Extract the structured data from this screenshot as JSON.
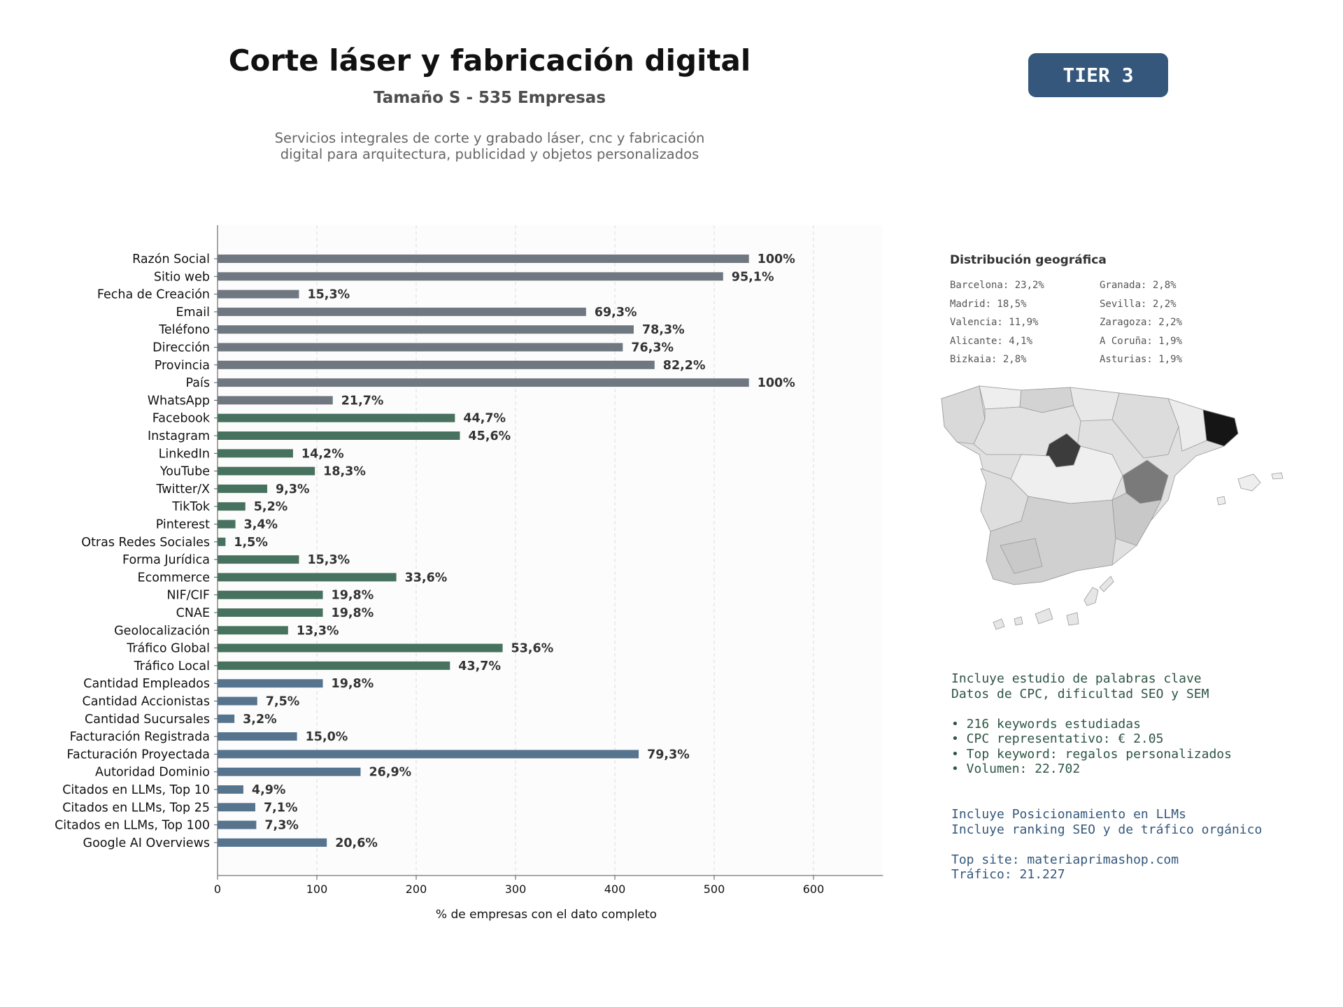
{
  "header": {
    "title": "Corte láser y fabricación digital",
    "subtitle": "Tamaño S - 535 Empresas",
    "description_line1": "Servicios integrales de corte y grabado láser, cnc y fabricación",
    "description_line2": "digital para arquitectura, publicidad y objetos personalizados",
    "tier_label": "TIER 3"
  },
  "chart_data": {
    "type": "bar",
    "orientation": "horizontal",
    "title": "",
    "xlabel": "% de empresas con el dato completo",
    "ylabel": "",
    "xlim": [
      0,
      670
    ],
    "xticks": [
      0,
      100,
      200,
      300,
      400,
      500,
      600
    ],
    "grid": true,
    "categories": [
      "Razón Social",
      "Sitio web",
      "Fecha de Creación",
      "Email",
      "Teléfono",
      "Dirección",
      "Provincia",
      "País",
      "WhatsApp",
      "Facebook",
      "Instagram",
      "LinkedIn",
      "YouTube",
      "Twitter/X",
      "TikTok",
      "Pinterest",
      "Otras Redes Sociales",
      "Forma Jurídica",
      "Ecommerce",
      "NIF/CIF",
      "CNAE",
      "Geolocalización",
      "Tráfico Global",
      "Tráfico Local",
      "Cantidad Empleados",
      "Cantidad Accionistas",
      "Cantidad Sucursales",
      "Facturación Registrada",
      "Facturación Proyectada",
      "Autoridad Dominio",
      "Citados en LLMs, Top 10",
      "Citados en LLMs, Top 25",
      "Citados en LLMs, Top 100",
      "Google AI Overviews"
    ],
    "values": [
      535,
      509,
      82,
      371,
      419,
      408,
      440,
      535,
      116,
      239,
      244,
      76,
      98,
      50,
      28,
      18,
      8,
      82,
      180,
      106,
      106,
      71,
      287,
      234,
      106,
      40,
      17,
      80,
      424,
      144,
      26,
      38,
      39,
      110
    ],
    "data_labels": [
      "100%",
      "95,1%",
      "15,3%",
      "69,3%",
      "78,3%",
      "76,3%",
      "82,2%",
      "100%",
      "21,7%",
      "44,7%",
      "45,6%",
      "14,2%",
      "18,3%",
      "9,3%",
      "5,2%",
      "3,4%",
      "1,5%",
      "15,3%",
      "33,6%",
      "19,8%",
      "19,8%",
      "13,3%",
      "53,6%",
      "43,7%",
      "19,8%",
      "7,5%",
      "3,2%",
      "15,0%",
      "79,3%",
      "26,9%",
      "4,9%",
      "7,1%",
      "7,3%",
      "20,6%"
    ],
    "groups": [
      "gray",
      "gray",
      "gray",
      "gray",
      "gray",
      "gray",
      "gray",
      "gray",
      "gray",
      "green",
      "green",
      "green",
      "green",
      "green",
      "green",
      "green",
      "green",
      "green",
      "green",
      "green",
      "green",
      "green",
      "green",
      "green",
      "blue",
      "blue",
      "blue",
      "blue",
      "blue",
      "blue",
      "blue",
      "blue",
      "blue",
      "blue"
    ],
    "colors": {
      "gray": "#6f7780",
      "green": "#47725f",
      "blue": "#57748f"
    }
  },
  "geo": {
    "title": "Distribución geográfica",
    "col1": [
      "Barcelona: 23,2%",
      "Madrid: 18,5%",
      "Valencia: 11,9%",
      "Alicante: 4,1%",
      "Bizkaia: 2,8%"
    ],
    "col2": [
      "Granada: 2,8%",
      "Sevilla: 2,2%",
      "Zaragoza: 2,2%",
      "A Coruña: 1,9%",
      "Asturias: 1,9%"
    ]
  },
  "keywords": {
    "line1": "Incluye estudio de palabras clave",
    "line2": "Datos de CPC, dificultad SEO y SEM",
    "bullet1": "• 216 keywords estudiadas",
    "bullet2": "• CPC representativo: € 2.05",
    "bullet3": "• Top keyword: regalos personalizados",
    "bullet4": "• Volumen: 22.702"
  },
  "llm": {
    "line1": "Incluye Posicionamiento en LLMs",
    "line2": "Incluye ranking SEO y de tráfico orgánico",
    "top_site": "Top site: materiaprimashop.com",
    "traffic": "Tráfico: 21.227"
  }
}
